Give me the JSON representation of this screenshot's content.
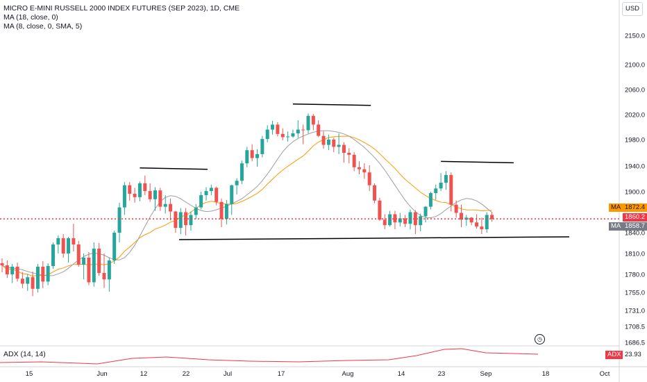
{
  "legend": {
    "title": "MICRO E-MINI RUSSELL 2000 INDEX FUTURES (SEP 2023), 1D, CME",
    "ma1": "MA (18, close, 0)",
    "ma2": "MA (8, close, 0, SMA, 5)"
  },
  "currency_button": "USD",
  "adx": {
    "label": "ADX (14, 14)",
    "value": "23.93",
    "tag": "ADX"
  },
  "price_tags": {
    "ma_tag_1": "MA",
    "ma_value_1": "1872.4",
    "last_price": "1860.2",
    "ma_tag_2": "MA",
    "ma_value_2": "1858.7"
  },
  "colors": {
    "up": "#26a69a",
    "down": "#ef5350",
    "ma_slow": "#ff9800",
    "ma_fast": "#9e9e9e",
    "adx": "#f23645",
    "trendline": "#000000",
    "last_price_line": "#f23645"
  },
  "chart_data": {
    "type": "candlestick",
    "yaxis_ticks": [
      2150.0,
      2100.0,
      2060.0,
      2020.0,
      1980.0,
      1940.0,
      1900.0,
      1840.0,
      1810.0,
      1780.0,
      1755.0,
      1731.0,
      1708.5,
      1686.5
    ],
    "xaxis_ticks": [
      "15",
      "Jun",
      "12",
      "22",
      "Jul",
      "17",
      "Aug",
      "14",
      "23",
      "Sep",
      "18",
      "Oct"
    ],
    "last_price": 1860.2,
    "ma_values": [
      1872.4,
      1858.7
    ],
    "adx_last": 23.93,
    "candles": [
      {
        "o": 1796,
        "h": 1803,
        "l": 1783,
        "c": 1793
      },
      {
        "o": 1793,
        "h": 1800,
        "l": 1775,
        "c": 1780
      },
      {
        "o": 1780,
        "h": 1795,
        "l": 1768,
        "c": 1791
      },
      {
        "o": 1791,
        "h": 1797,
        "l": 1770,
        "c": 1774
      },
      {
        "o": 1774,
        "h": 1783,
        "l": 1761,
        "c": 1767
      },
      {
        "o": 1767,
        "h": 1780,
        "l": 1757,
        "c": 1776
      },
      {
        "o": 1776,
        "h": 1784,
        "l": 1750,
        "c": 1760
      },
      {
        "o": 1760,
        "h": 1795,
        "l": 1755,
        "c": 1791
      },
      {
        "o": 1791,
        "h": 1799,
        "l": 1761,
        "c": 1770
      },
      {
        "o": 1770,
        "h": 1796,
        "l": 1765,
        "c": 1792
      },
      {
        "o": 1792,
        "h": 1826,
        "l": 1788,
        "c": 1823
      },
      {
        "o": 1823,
        "h": 1836,
        "l": 1810,
        "c": 1832
      },
      {
        "o": 1832,
        "h": 1838,
        "l": 1804,
        "c": 1810
      },
      {
        "o": 1810,
        "h": 1834,
        "l": 1797,
        "c": 1832
      },
      {
        "o": 1832,
        "h": 1853,
        "l": 1813,
        "c": 1823
      },
      {
        "o": 1823,
        "h": 1828,
        "l": 1791,
        "c": 1794
      },
      {
        "o": 1794,
        "h": 1810,
        "l": 1773,
        "c": 1804
      },
      {
        "o": 1804,
        "h": 1812,
        "l": 1765,
        "c": 1769
      },
      {
        "o": 1769,
        "h": 1826,
        "l": 1763,
        "c": 1817
      },
      {
        "o": 1817,
        "h": 1825,
        "l": 1778,
        "c": 1782
      },
      {
        "o": 1782,
        "h": 1810,
        "l": 1761,
        "c": 1773
      },
      {
        "o": 1773,
        "h": 1804,
        "l": 1756,
        "c": 1800
      },
      {
        "o": 1800,
        "h": 1843,
        "l": 1795,
        "c": 1840
      },
      {
        "o": 1840,
        "h": 1884,
        "l": 1826,
        "c": 1877
      },
      {
        "o": 1877,
        "h": 1915,
        "l": 1866,
        "c": 1910
      },
      {
        "o": 1910,
        "h": 1915,
        "l": 1887,
        "c": 1897
      },
      {
        "o": 1897,
        "h": 1906,
        "l": 1884,
        "c": 1892
      },
      {
        "o": 1892,
        "h": 1916,
        "l": 1886,
        "c": 1913
      },
      {
        "o": 1913,
        "h": 1925,
        "l": 1895,
        "c": 1901
      },
      {
        "o": 1901,
        "h": 1913,
        "l": 1885,
        "c": 1889
      },
      {
        "o": 1889,
        "h": 1907,
        "l": 1872,
        "c": 1902
      },
      {
        "o": 1902,
        "h": 1906,
        "l": 1872,
        "c": 1878
      },
      {
        "o": 1878,
        "h": 1895,
        "l": 1868,
        "c": 1882
      },
      {
        "o": 1882,
        "h": 1890,
        "l": 1858,
        "c": 1871
      },
      {
        "o": 1871,
        "h": 1872,
        "l": 1840,
        "c": 1847
      },
      {
        "o": 1847,
        "h": 1876,
        "l": 1838,
        "c": 1870
      },
      {
        "o": 1870,
        "h": 1876,
        "l": 1836,
        "c": 1851
      },
      {
        "o": 1851,
        "h": 1871,
        "l": 1843,
        "c": 1866
      },
      {
        "o": 1866,
        "h": 1882,
        "l": 1860,
        "c": 1877
      },
      {
        "o": 1877,
        "h": 1900,
        "l": 1874,
        "c": 1895
      },
      {
        "o": 1895,
        "h": 1907,
        "l": 1887,
        "c": 1901
      },
      {
        "o": 1901,
        "h": 1911,
        "l": 1895,
        "c": 1906
      },
      {
        "o": 1906,
        "h": 1908,
        "l": 1880,
        "c": 1885
      },
      {
        "o": 1885,
        "h": 1890,
        "l": 1848,
        "c": 1860
      },
      {
        "o": 1860,
        "h": 1888,
        "l": 1852,
        "c": 1882
      },
      {
        "o": 1882,
        "h": 1911,
        "l": 1866,
        "c": 1910
      },
      {
        "o": 1910,
        "h": 1921,
        "l": 1896,
        "c": 1917
      },
      {
        "o": 1917,
        "h": 1948,
        "l": 1912,
        "c": 1944
      },
      {
        "o": 1944,
        "h": 1969,
        "l": 1938,
        "c": 1964
      },
      {
        "o": 1964,
        "h": 1973,
        "l": 1947,
        "c": 1952
      },
      {
        "o": 1952,
        "h": 1965,
        "l": 1939,
        "c": 1958
      },
      {
        "o": 1958,
        "h": 1986,
        "l": 1953,
        "c": 1981
      },
      {
        "o": 1981,
        "h": 2003,
        "l": 1976,
        "c": 1996
      },
      {
        "o": 1996,
        "h": 2010,
        "l": 1988,
        "c": 2004
      },
      {
        "o": 2004,
        "h": 2008,
        "l": 1985,
        "c": 1989
      },
      {
        "o": 1989,
        "h": 1998,
        "l": 1979,
        "c": 1984
      },
      {
        "o": 1984,
        "h": 1993,
        "l": 1977,
        "c": 1985
      },
      {
        "o": 1985,
        "h": 1996,
        "l": 1983,
        "c": 1990
      },
      {
        "o": 1990,
        "h": 2011,
        "l": 1983,
        "c": 1996
      },
      {
        "o": 1996,
        "h": 2004,
        "l": 1973,
        "c": 1995
      },
      {
        "o": 1995,
        "h": 2022,
        "l": 1990,
        "c": 2018
      },
      {
        "o": 2018,
        "h": 2021,
        "l": 1995,
        "c": 2004
      },
      {
        "o": 2004,
        "h": 2011,
        "l": 1984,
        "c": 1986
      },
      {
        "o": 1986,
        "h": 1993,
        "l": 1966,
        "c": 1972
      },
      {
        "o": 1972,
        "h": 1988,
        "l": 1964,
        "c": 1980
      },
      {
        "o": 1980,
        "h": 1983,
        "l": 1961,
        "c": 1969
      },
      {
        "o": 1969,
        "h": 1990,
        "l": 1958,
        "c": 1972
      },
      {
        "o": 1972,
        "h": 1976,
        "l": 1945,
        "c": 1960
      },
      {
        "o": 1960,
        "h": 1967,
        "l": 1944,
        "c": 1957
      },
      {
        "o": 1957,
        "h": 1961,
        "l": 1932,
        "c": 1938
      },
      {
        "o": 1938,
        "h": 1947,
        "l": 1927,
        "c": 1935
      },
      {
        "o": 1935,
        "h": 1944,
        "l": 1920,
        "c": 1930
      },
      {
        "o": 1930,
        "h": 1941,
        "l": 1901,
        "c": 1910
      },
      {
        "o": 1910,
        "h": 1913,
        "l": 1883,
        "c": 1887
      },
      {
        "o": 1887,
        "h": 1891,
        "l": 1857,
        "c": 1859
      },
      {
        "o": 1859,
        "h": 1867,
        "l": 1845,
        "c": 1851
      },
      {
        "o": 1851,
        "h": 1872,
        "l": 1849,
        "c": 1867
      },
      {
        "o": 1867,
        "h": 1872,
        "l": 1845,
        "c": 1855
      },
      {
        "o": 1855,
        "h": 1869,
        "l": 1849,
        "c": 1861
      },
      {
        "o": 1861,
        "h": 1866,
        "l": 1848,
        "c": 1853
      },
      {
        "o": 1853,
        "h": 1874,
        "l": 1845,
        "c": 1870
      },
      {
        "o": 1870,
        "h": 1873,
        "l": 1838,
        "c": 1851
      },
      {
        "o": 1851,
        "h": 1868,
        "l": 1842,
        "c": 1864
      },
      {
        "o": 1864,
        "h": 1879,
        "l": 1855,
        "c": 1878
      },
      {
        "o": 1878,
        "h": 1900,
        "l": 1874,
        "c": 1898
      },
      {
        "o": 1898,
        "h": 1911,
        "l": 1888,
        "c": 1905
      },
      {
        "o": 1905,
        "h": 1929,
        "l": 1901,
        "c": 1914
      },
      {
        "o": 1914,
        "h": 1932,
        "l": 1903,
        "c": 1926
      },
      {
        "o": 1926,
        "h": 1930,
        "l": 1871,
        "c": 1881
      },
      {
        "o": 1881,
        "h": 1887,
        "l": 1862,
        "c": 1869
      },
      {
        "o": 1869,
        "h": 1881,
        "l": 1848,
        "c": 1859
      },
      {
        "o": 1859,
        "h": 1866,
        "l": 1850,
        "c": 1862
      },
      {
        "o": 1862,
        "h": 1863,
        "l": 1851,
        "c": 1855
      },
      {
        "o": 1855,
        "h": 1867,
        "l": 1846,
        "c": 1849
      },
      {
        "o": 1849,
        "h": 1862,
        "l": 1838,
        "c": 1845
      },
      {
        "o": 1845,
        "h": 1870,
        "l": 1840,
        "c": 1866
      },
      {
        "o": 1866,
        "h": 1870,
        "l": 1856,
        "c": 1860
      }
    ],
    "resistance_lines": [
      {
        "from_index": 27,
        "to_index": 37,
        "y": 1937
      },
      {
        "from_index": 57,
        "to_index": 69,
        "y": 2037
      },
      {
        "from_index": 86,
        "to_index": 97,
        "y": 1947
      }
    ],
    "support_line": {
      "from_index": 34,
      "to_index": 108,
      "y_start": 1839,
      "y_end": 1843
    }
  }
}
